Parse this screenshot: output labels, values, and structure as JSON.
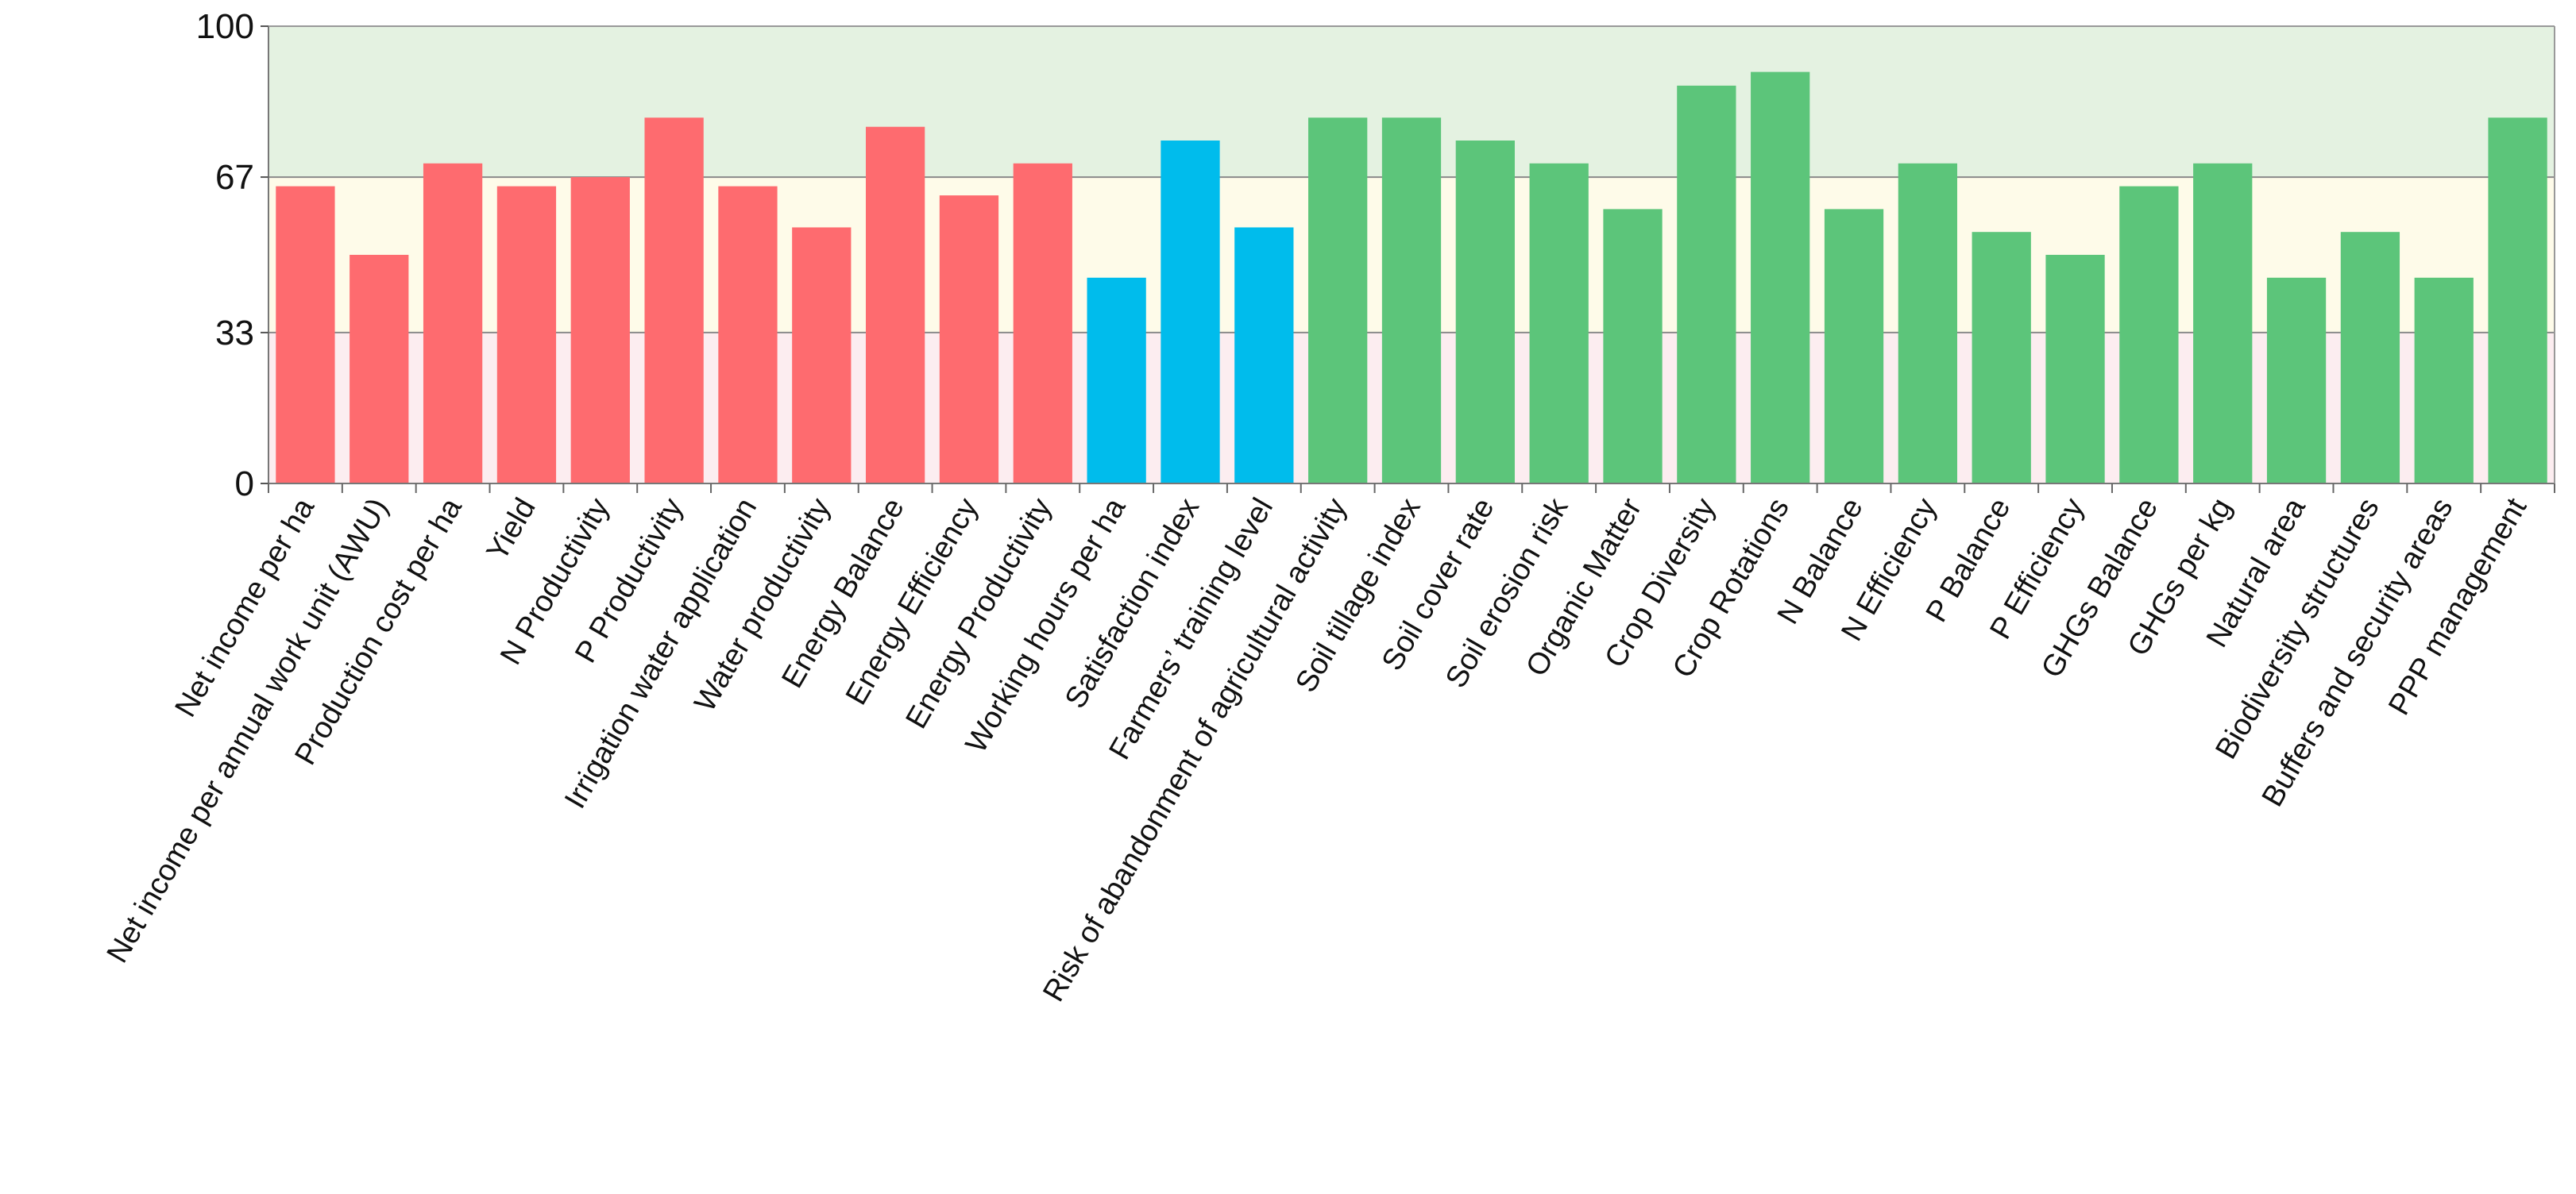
{
  "chart_data": {
    "type": "bar",
    "title": "",
    "xlabel": "",
    "ylabel": "",
    "ylim": [
      0,
      100
    ],
    "yticks": [
      0,
      33,
      67,
      100
    ],
    "bands": [
      {
        "from": 0,
        "to": 33,
        "color": "#fcedf0"
      },
      {
        "from": 33,
        "to": 67,
        "color": "#fefbe9"
      },
      {
        "from": 67,
        "to": 100,
        "color": "#e4f2e1"
      }
    ],
    "group_colors": {
      "economic": "#fe6b6f",
      "social": "#00bcec",
      "environmental": "#5cc57a"
    },
    "categories": [
      "Net income per ha",
      "Net income per annual work unit (AWU)",
      "Production cost per ha",
      "Yield",
      "N Productivity",
      "P Productivity",
      "Irrigation water application",
      "Water productivity",
      "Energy Balance",
      "Energy Efficiency",
      "Energy Productivity",
      "Working hours per ha",
      "Satisfaction index",
      "Farmers’ training level",
      "Risk of abandonment of agricultural activity",
      "Soil tillage index",
      "Soil cover rate",
      "Soil erosion risk",
      "Organic Matter",
      "Crop Diversity",
      "Crop Rotations",
      "N Balance",
      "N Efficiency",
      "P Balance",
      "P Efficiency",
      "GHGs Balance",
      "GHGs per kg",
      "Natural area",
      "Biodiversity structures",
      "Buffers and security areas",
      "PPP management"
    ],
    "values": [
      65,
      50,
      70,
      65,
      67,
      80,
      65,
      56,
      78,
      63,
      70,
      45,
      75,
      56,
      80,
      80,
      75,
      70,
      60,
      87,
      90,
      60,
      70,
      55,
      50,
      65,
      70,
      45,
      55,
      45,
      80
    ],
    "groups": [
      "economic",
      "economic",
      "economic",
      "economic",
      "economic",
      "economic",
      "economic",
      "economic",
      "economic",
      "economic",
      "economic",
      "social",
      "social",
      "social",
      "environmental",
      "environmental",
      "environmental",
      "environmental",
      "environmental",
      "environmental",
      "environmental",
      "environmental",
      "environmental",
      "environmental",
      "environmental",
      "environmental",
      "environmental",
      "environmental",
      "environmental",
      "environmental",
      "environmental"
    ]
  }
}
